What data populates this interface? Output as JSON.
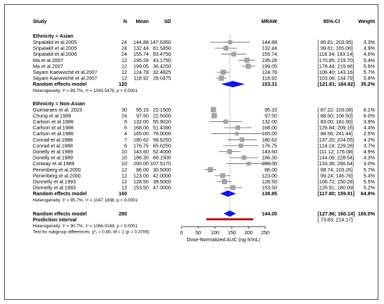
{
  "chart_data": {
    "type": "forest",
    "headers": {
      "study": "Study",
      "n": "N",
      "mean": "Mean",
      "sd": "SD",
      "effect": "MRAW",
      "ci": "95%-CI",
      "weight": "Weight"
    },
    "x_axis": {
      "label": "Dose-Normalized AUC (ng·h/mL)",
      "ticks": [
        0,
        50,
        100,
        150,
        200,
        250
      ],
      "range": [
        0,
        250
      ]
    },
    "groups": [
      {
        "title": "Ethnicity = Asian",
        "studies": [
          {
            "study": "Sripalakit et al.2005",
            "n": "24",
            "mean": "144.88",
            "sd": "147.6350",
            "effect": 144.88,
            "lower": 85.81,
            "upper": 203.95,
            "mraw": "144.88",
            "ci": "[ 85.81; 203.95]",
            "weight": "3.3%"
          },
          {
            "study": "Sripalakit et al.2005",
            "n": "24",
            "mean": "132.44",
            "sd": "81.5450",
            "effect": 132.44,
            "lower": 99.81,
            "upper": 165.06,
            "mraw": "132.44",
            "ci": "[ 99.81; 165.06]",
            "weight": "4.9%"
          },
          {
            "study": "Sripalakit et al.2006",
            "n": "24",
            "mean": "155.74",
            "sd": "93.4750",
            "effect": 155.74,
            "lower": 118.34,
            "upper": 193.14,
            "mraw": "155.74",
            "ci": "[118.34; 193.14]",
            "weight": "4.6%"
          },
          {
            "study": "Ma et al.2007",
            "n": "12",
            "mean": "195.28",
            "sd": "43.1750",
            "effect": 195.28,
            "lower": 170.85,
            "upper": 219.7,
            "mraw": "195.28",
            "ci": "[170.85; 219.70]",
            "weight": "5.4%"
          },
          {
            "study": "Ma et al.2007",
            "n": "12",
            "mean": "199.05",
            "sd": "36.4250",
            "effect": 199.05,
            "lower": 178.44,
            "upper": 219.66,
            "mraw": "199.05",
            "ci": "[178.44; 219.66]",
            "weight": "5.6%"
          },
          {
            "study": "Sayam Kaewvichit et al.2007",
            "n": "12",
            "mean": "124.78",
            "sd": "32.4825",
            "effect": 124.78,
            "lower": 106.4,
            "upper": 143.16,
            "mraw": "124.78",
            "ci": "[106.40; 143.16]",
            "weight": "5.7%"
          },
          {
            "study": "Sayam Kaewvichit et al.2007",
            "n": "12",
            "mean": "118.92",
            "sd": "28.0475",
            "effect": 118.92,
            "lower": 103.06,
            "upper": 134.79,
            "mraw": "118.92",
            "ci": "[103.06; 134.79]",
            "weight": "5.8%"
          }
        ],
        "pooled": {
          "label": "Random effects model",
          "n": "120",
          "effect": 153.31,
          "lower": 121.81,
          "upper": 184.82,
          "mraw": "153.31",
          "ci": "[121.81; 184.82]",
          "weight": "35.2%"
        },
        "heterogeneity": "Heterogeneity: I² = 89.7%, τ² = 1043.5476, p < 0.0001"
      },
      {
        "title": "Ethnicity = Non-Asian",
        "studies": [
          {
            "study": "Guimaraes et al. 2023",
            "n": "30",
            "mean": "95.15",
            "sd": "22.1500",
            "effect": 95.15,
            "lower": 87.22,
            "upper": 103.08,
            "mraw": "95.15",
            "ci": "[ 87.22; 103.08]",
            "weight": "6.1%"
          },
          {
            "study": "Chung et al.1999",
            "n": "24",
            "mean": "97.50",
            "sd": "22.5000",
            "effect": 97.5,
            "lower": 88.5,
            "upper": 106.5,
            "mraw": "97.50",
            "ci": "[ 88.50; 106.50]",
            "weight": "6.0%"
          },
          {
            "study": "Carlson et al.1986",
            "n": "5",
            "mean": "132.00",
            "sd": "55.9020",
            "effect": 132.0,
            "lower": 83.0,
            "upper": 181.0,
            "mraw": "132.00",
            "ci": "[ 83.00; 181.00]",
            "weight": "3.9%"
          },
          {
            "study": "Carlson et al.1986",
            "n": "6",
            "mean": "168.00",
            "sd": "51.4390",
            "effect": 168.0,
            "lower": 126.84,
            "upper": 209.16,
            "mraw": "168.00",
            "ci": "[126.84; 209.16]",
            "weight": "4.4%"
          },
          {
            "study": "Carlson et al.1986",
            "n": "4",
            "mean": "165.00",
            "sd": "78.0000",
            "effect": 165.0,
            "lower": 88.56,
            "upper": 241.44,
            "mraw": "165.00",
            "ci": "[ 88.56; 241.44]",
            "weight": "2.5%"
          },
          {
            "study": "Conrad et al.1988",
            "n": "7",
            "mean": "180.62",
            "sd": "58.6250",
            "effect": 180.62,
            "lower": 137.2,
            "upper": 224.05,
            "mraw": "180.62",
            "ci": "[137.20; 224.05]",
            "weight": "4.2%"
          },
          {
            "study": "Conrad et al.1988",
            "n": "6",
            "mean": "176.75",
            "sd": "65.6250",
            "effect": 176.75,
            "lower": 124.24,
            "upper": 229.26,
            "mraw": "176.75",
            "ci": "[124.24; 229.26]",
            "weight": "3.7%"
          },
          {
            "study": "Donelly et al.1989",
            "n": "10",
            "mean": "143.60",
            "sd": "52.4000",
            "effect": 143.6,
            "lower": 111.12,
            "upper": 176.08,
            "mraw": "143.60",
            "ci": "[111.12; 176.08]",
            "weight": "4.9%"
          },
          {
            "study": "Donelly et al.1989",
            "n": "10",
            "mean": "186.30",
            "sd": "68.1500",
            "effect": 186.3,
            "lower": 144.06,
            "upper": 228.54,
            "mraw": "186.30",
            "ci": "[144.06; 228.54]",
            "weight": "4.3%"
          },
          {
            "study": "Conway et al.1989",
            "n": "10",
            "mean": "200.00",
            "sd": "107.5170",
            "effect": 200.0,
            "lower": 133.36,
            "upper": 266.64,
            "mraw": "200.00",
            "ci": "[133.36; 266.64]",
            "weight": "3.0%"
          },
          {
            "study": "Penenberg et al.2000",
            "n": "12",
            "mean": "86.00",
            "sd": "30.5000",
            "effect": 86.0,
            "lower": 68.74,
            "upper": 103.26,
            "mraw": "86.00",
            "ci": "[ 68.74; 103.26]",
            "weight": "5.7%"
          },
          {
            "study": "Penenberg et al.2000",
            "n": "12",
            "mean": "123.00",
            "sd": "42.0000",
            "effect": 123.0,
            "lower": 99.24,
            "upper": 146.76,
            "mraw": "123.00",
            "ci": "[ 99.24; 146.76]",
            "weight": "5.4%"
          },
          {
            "study": "Donnelly et al.1993",
            "n": "12",
            "mean": "128.50",
            "sd": "38.5000",
            "effect": 128.5,
            "lower": 106.72,
            "upper": 150.28,
            "mraw": "128.50",
            "ci": "[106.72; 150.28]",
            "weight": "5.5%"
          },
          {
            "study": "Donnelly et al.1993",
            "n": "12",
            "mean": "153.50",
            "sd": "47.0000",
            "effect": 153.5,
            "lower": 126.91,
            "upper": 180.09,
            "mraw": "153.50",
            "ci": "[126.91; 180.09]",
            "weight": "5.2%"
          }
        ],
        "pooled": {
          "label": "Random effects model",
          "n": "160",
          "effect": 138.85,
          "lower": 117.8,
          "upper": 159.91,
          "mraw": "138.85",
          "ci": "[117.80; 159.91]",
          "weight": "64.8%"
        },
        "heterogeneity": "Heterogeneity: I² = 85.7%, τ² = 1047.1838, p < 0.0001"
      }
    ],
    "overall": {
      "label": "Random effects model",
      "n": "280",
      "effect": 144.0,
      "lower": 127.86,
      "upper": 160.14,
      "mraw": "144.00",
      "ci": "[127.86; 160.14]",
      "weight": "100.0%"
    },
    "prediction": {
      "label": "Prediction interval",
      "lower": 73.83,
      "upper": 214.17,
      "ci": "[ 73.83; 214.17]"
    },
    "overall_heterogeneity": "Heterogeneity: I² = 90.7%, τ² = 1066.0169, p < 0.0001",
    "subgroup_test": "Test for subgroup differences: χ²₁ = 0.80, df = 1 (p = 0.3706)",
    "colors": {
      "square": "#a6a6a6",
      "diamond": "#1414dc",
      "prediction": "#b40000",
      "ci_line": "#555555"
    }
  }
}
